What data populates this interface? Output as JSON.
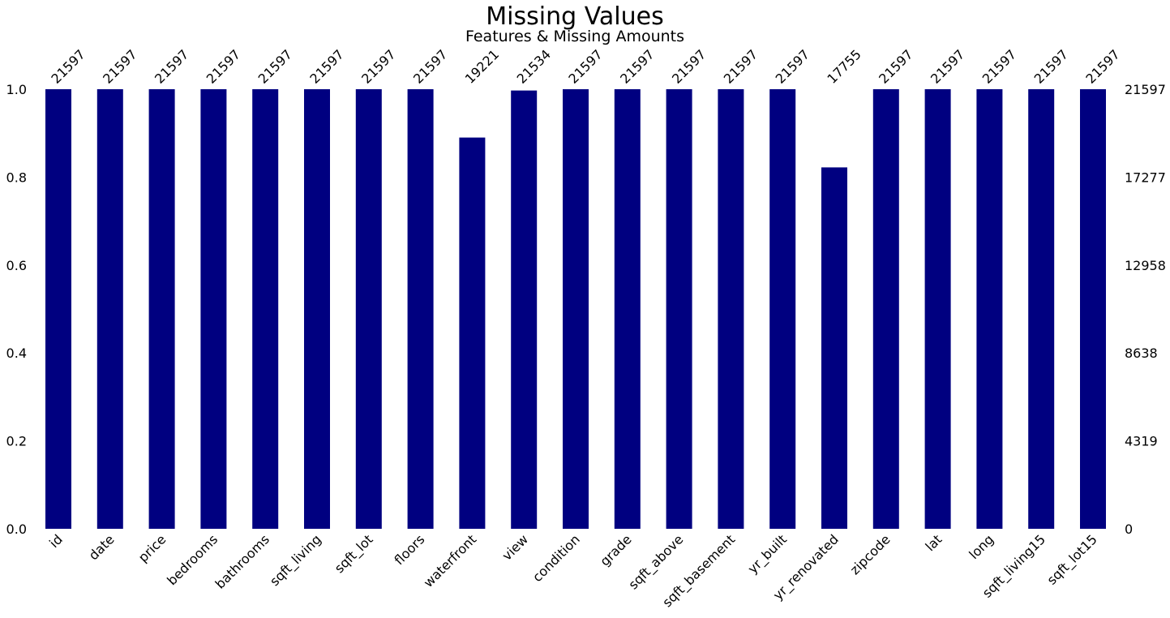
{
  "chart_data": {
    "type": "bar",
    "title": "Missing Values",
    "subtitle": "Features & Missing Amounts",
    "bar_color": "#000080",
    "ylim": [
      0,
      1
    ],
    "left_ticks": [
      "0.0",
      "0.2",
      "0.4",
      "0.6",
      "0.8",
      "1.0"
    ],
    "right_ticks": [
      "0",
      "4319",
      "8638",
      "12958",
      "17277",
      "21597"
    ],
    "total": 21597,
    "categories": [
      "id",
      "date",
      "price",
      "bedrooms",
      "bathrooms",
      "sqft_living",
      "sqft_lot",
      "floors",
      "waterfront",
      "view",
      "condition",
      "grade",
      "sqft_above",
      "sqft_basement",
      "yr_built",
      "yr_renovated",
      "zipcode",
      "lat",
      "long",
      "sqft_living15",
      "sqft_lot15"
    ],
    "values": [
      21597,
      21597,
      21597,
      21597,
      21597,
      21597,
      21597,
      21597,
      19221,
      21534,
      21597,
      21597,
      21597,
      21597,
      21597,
      17755,
      21597,
      21597,
      21597,
      21597,
      21597
    ],
    "count_labels": [
      "21597",
      "21597",
      "21597",
      "21597",
      "21597",
      "21597",
      "21597",
      "21597",
      "19221",
      "21534",
      "21597",
      "21597",
      "21597",
      "21597",
      "21597",
      "17755",
      "21597",
      "21597",
      "21597",
      "21597",
      "21597"
    ]
  }
}
